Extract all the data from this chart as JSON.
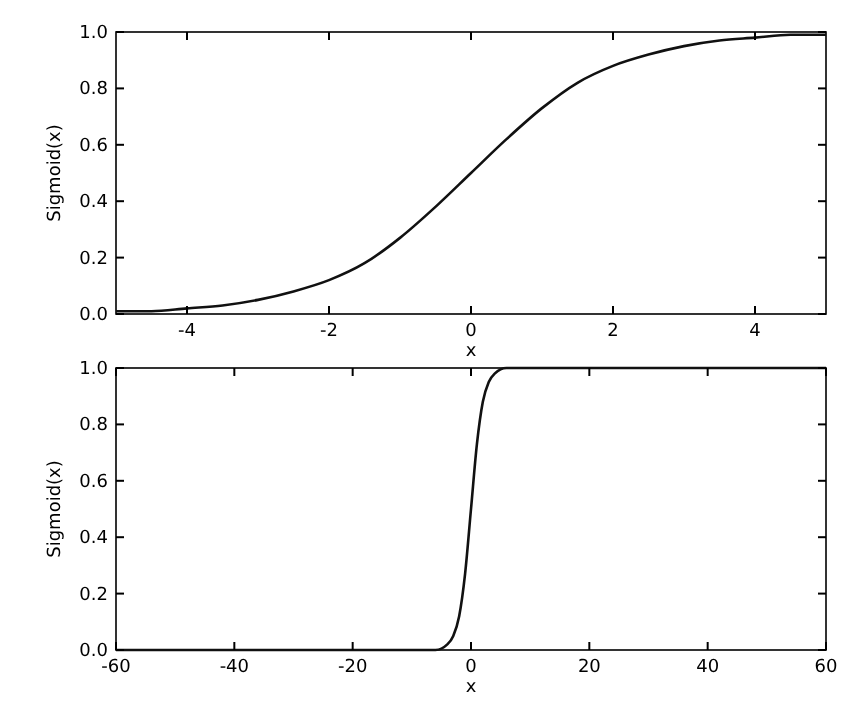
{
  "chart_data": [
    {
      "type": "line",
      "xlabel": "x",
      "ylabel": "Sigmoid(x)",
      "xlim": [
        -5,
        5
      ],
      "ylim": [
        0,
        1
      ],
      "xticks": [
        -4,
        -2,
        0,
        2,
        4
      ],
      "yticks": [
        {
          "value": 0,
          "label": "0.0"
        },
        {
          "value": 0.2,
          "label": "0.2"
        },
        {
          "value": 0.4,
          "label": "0.4"
        },
        {
          "value": 0.6,
          "label": "0.6"
        },
        {
          "value": 0.8,
          "label": "0.8"
        },
        {
          "value": 1,
          "label": "1.0"
        }
      ],
      "series": [
        {
          "color": "#111111",
          "x": [
            -5,
            -4.5,
            -4,
            -3.5,
            -3,
            -2.5,
            -2,
            -1.5,
            -1,
            -0.5,
            0,
            0.5,
            1,
            1.5,
            2,
            2.5,
            3,
            3.5,
            4,
            4.5,
            5
          ],
          "values": [
            0.01,
            0.01,
            0.02,
            0.03,
            0.05,
            0.08,
            0.12,
            0.18,
            0.27,
            0.38,
            0.5,
            0.62,
            0.73,
            0.82,
            0.88,
            0.92,
            0.95,
            0.97,
            0.98,
            0.99,
            0.99
          ]
        }
      ]
    },
    {
      "type": "line",
      "xlabel": "x",
      "ylabel": "Sigmoid(x)",
      "xlim": [
        -60,
        60
      ],
      "ylim": [
        0,
        1
      ],
      "xticks": [
        -60,
        -40,
        -20,
        0,
        20,
        40,
        60
      ],
      "yticks": [
        {
          "value": 0,
          "label": "0.0"
        },
        {
          "value": 0.2,
          "label": "0.2"
        },
        {
          "value": 0.4,
          "label": "0.4"
        },
        {
          "value": 0.6,
          "label": "0.6"
        },
        {
          "value": 0.8,
          "label": "0.8"
        },
        {
          "value": 1,
          "label": "1.0"
        }
      ],
      "series": [
        {
          "color": "#111111",
          "x": [
            -60,
            -20,
            -10,
            -6,
            -4,
            -3,
            -2,
            -1,
            0,
            1,
            2,
            3,
            4,
            6,
            10,
            20,
            60
          ],
          "values": [
            0,
            0,
            0,
            0,
            0.02,
            0.05,
            0.12,
            0.27,
            0.5,
            0.73,
            0.88,
            0.95,
            0.98,
            1,
            1,
            1,
            1
          ]
        }
      ]
    }
  ]
}
